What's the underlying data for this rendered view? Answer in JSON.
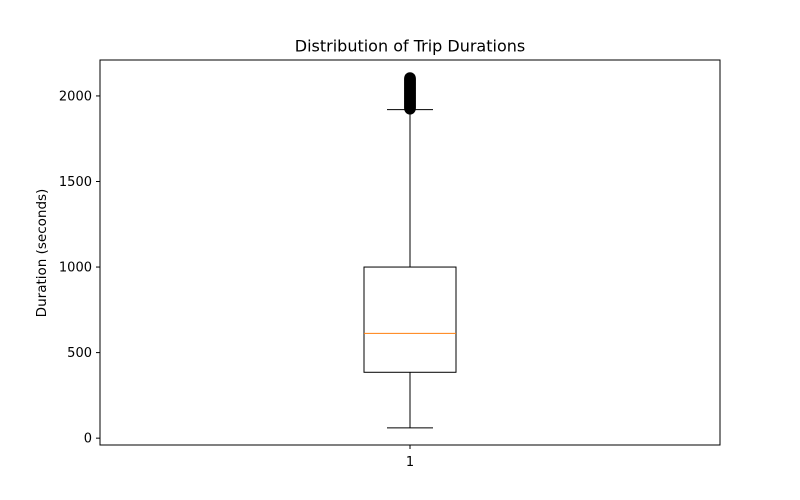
{
  "chart_data": {
    "type": "box",
    "title": "Distribution of Trip Durations",
    "xlabel": "",
    "ylabel": "Duration (seconds)",
    "categories": [
      "1"
    ],
    "ylim": [
      -40,
      2210
    ],
    "yticks": [
      0,
      500,
      1000,
      1500,
      2000
    ],
    "grid": false,
    "boxes": [
      {
        "category": "1",
        "whisker_low": 60,
        "q1": 385,
        "median": 612,
        "q3": 1000,
        "whisker_high": 1920,
        "outlier_min": 1925,
        "outlier_max": 2105
      }
    ],
    "colors": {
      "box": "#000000",
      "median": "#ff7f0e",
      "outliers": "#000000"
    }
  }
}
